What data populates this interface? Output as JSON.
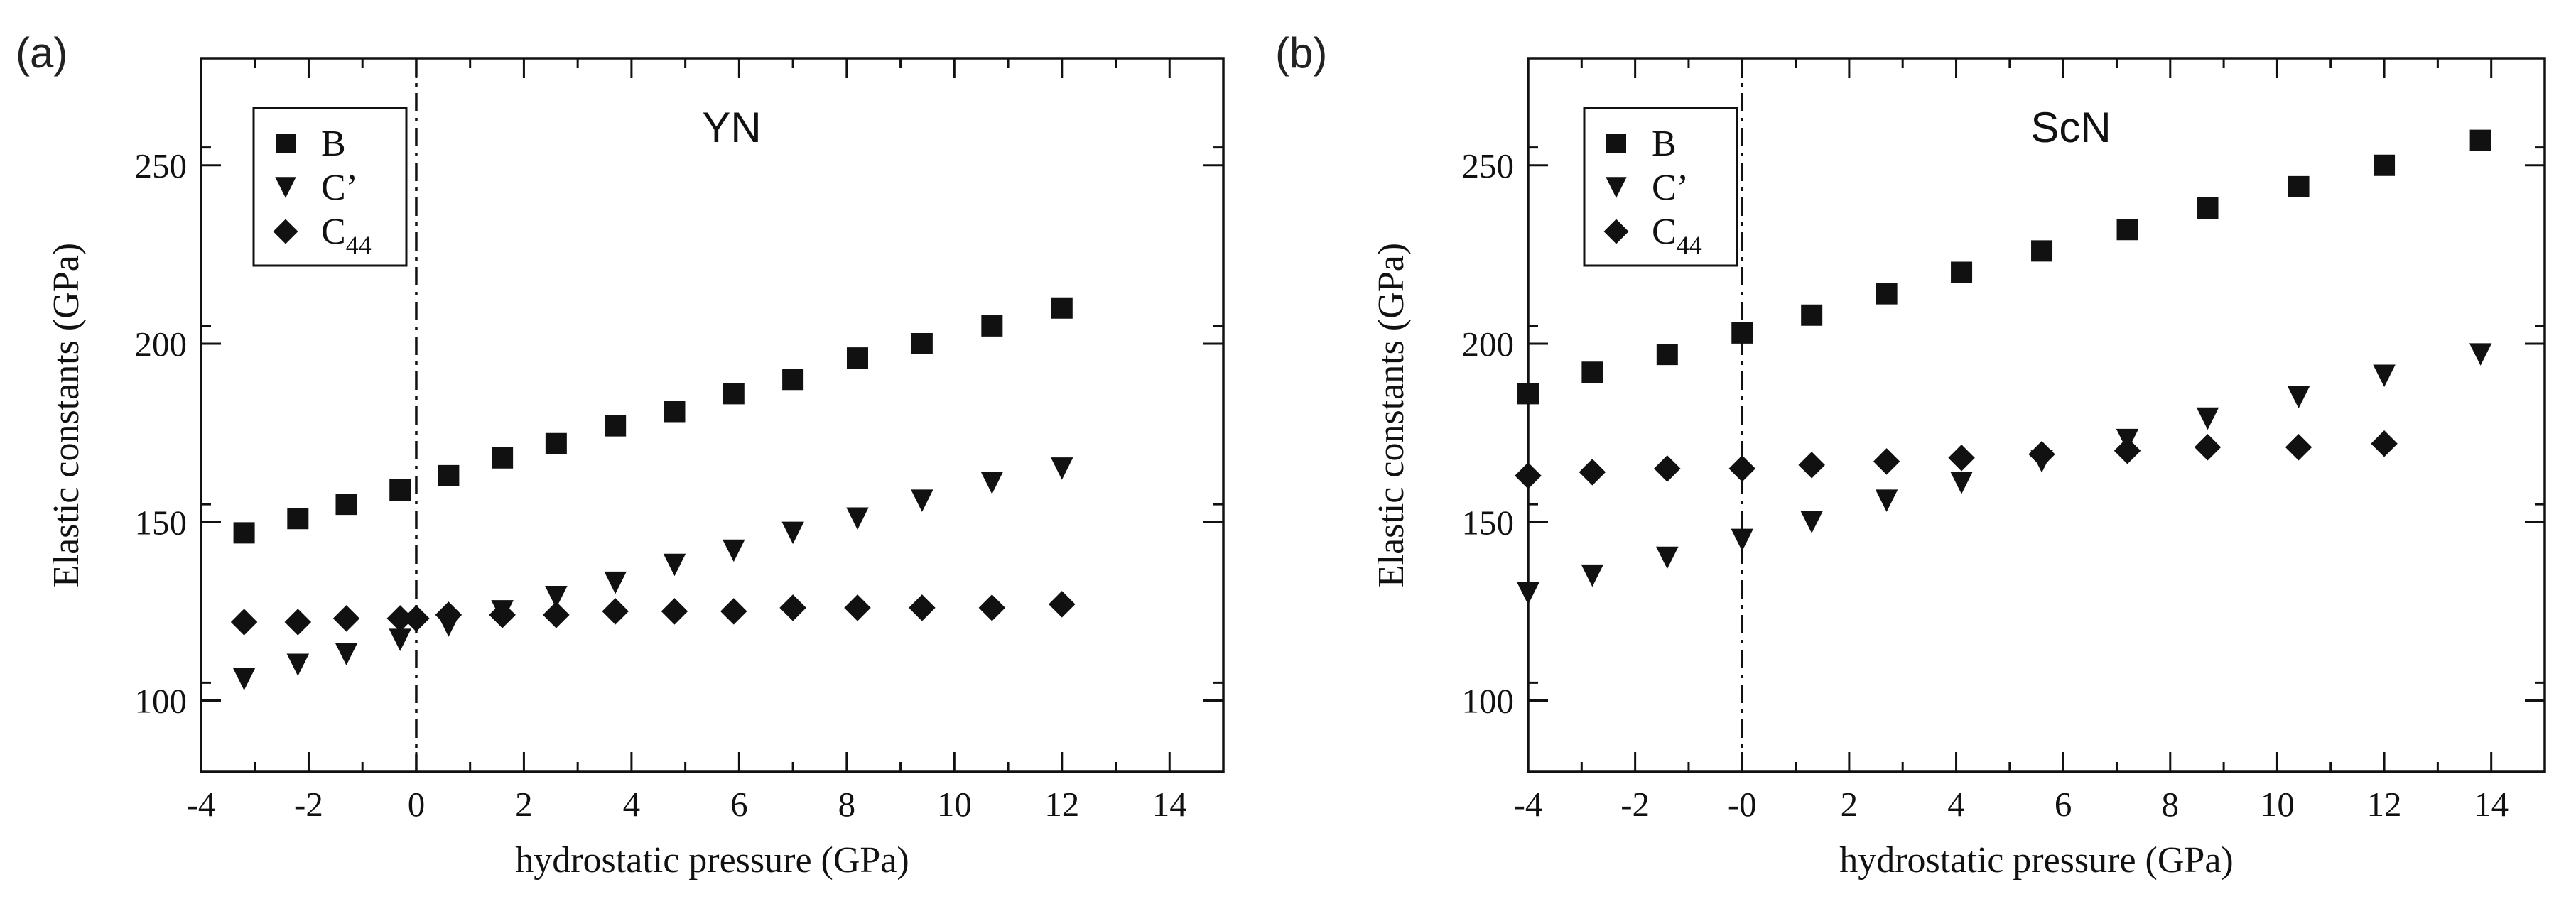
{
  "chart_data": [
    {
      "type": "scatter",
      "panel_label": "(a)",
      "title": "YN",
      "xlabel": "hydrostatic pressure (GPa)",
      "ylabel": "Elastic constants (GPa)",
      "xlim": [
        -4,
        15
      ],
      "ylim": [
        80,
        280
      ],
      "xticks": [
        -4,
        -2,
        0,
        2,
        4,
        6,
        8,
        10,
        12,
        14
      ],
      "yticks": [
        100,
        150,
        200,
        250
      ],
      "xtick_labels": [
        "-4",
        "-2",
        "0",
        "2",
        "4",
        "6",
        "8",
        "10",
        "12",
        "14"
      ],
      "ytick_labels": [
        "100",
        "150",
        "200",
        "250"
      ],
      "vertical_reference_x": 0,
      "legend_position": "top-left",
      "legend": [
        {
          "marker": "square",
          "label": "B",
          "sub": ""
        },
        {
          "marker": "triangle-down",
          "label": "C’",
          "sub": ""
        },
        {
          "marker": "diamond",
          "label": "C",
          "sub": "44"
        }
      ],
      "series": [
        {
          "name": "B",
          "marker": "square",
          "x": [
            -3.2,
            -2.2,
            -1.3,
            -0.3,
            0.6,
            1.6,
            2.6,
            3.7,
            4.8,
            5.9,
            7.0,
            8.2,
            9.4,
            10.7,
            12.0
          ],
          "y": [
            147,
            151,
            155,
            159,
            163,
            168,
            172,
            177,
            181,
            186,
            190,
            196,
            200,
            205,
            210
          ]
        },
        {
          "name": "C’",
          "marker": "triangle-down",
          "x": [
            -3.2,
            -2.2,
            -1.3,
            -0.3,
            0.6,
            1.6,
            2.6,
            3.7,
            4.8,
            5.9,
            7.0,
            8.2,
            9.4,
            10.7,
            12.0
          ],
          "y": [
            106,
            110,
            113,
            117,
            121,
            125,
            129,
            133,
            138,
            142,
            147,
            151,
            156,
            161,
            165
          ]
        },
        {
          "name": "C44",
          "marker": "diamond",
          "x": [
            -3.2,
            -2.2,
            -1.3,
            -0.3,
            0.0,
            0.6,
            1.6,
            2.6,
            3.7,
            4.8,
            5.9,
            7.0,
            8.2,
            9.4,
            10.7,
            12.0
          ],
          "y": [
            122,
            122,
            123,
            123,
            123,
            124,
            124,
            124,
            125,
            125,
            125,
            126,
            126,
            126,
            126,
            127
          ]
        }
      ]
    },
    {
      "type": "scatter",
      "panel_label": "(b)",
      "title": "ScN",
      "xlabel": "hydrostatic pressure (GPa)",
      "ylabel": "Elastic constants (GPa)",
      "xlim": [
        -4,
        15
      ],
      "ylim": [
        80,
        280
      ],
      "xticks": [
        -4,
        -2,
        0,
        2,
        4,
        6,
        8,
        10,
        12,
        14
      ],
      "yticks": [
        100,
        150,
        200,
        250
      ],
      "xtick_labels": [
        "-4",
        "-2",
        "-0",
        "2",
        "4",
        "6",
        "8",
        "10",
        "12",
        "14"
      ],
      "ytick_labels": [
        "100",
        "150",
        "200",
        "250"
      ],
      "vertical_reference_x": 0,
      "legend_position": "top-left",
      "legend": [
        {
          "marker": "square",
          "label": "B",
          "sub": ""
        },
        {
          "marker": "triangle-down",
          "label": "C’",
          "sub": ""
        },
        {
          "marker": "diamond",
          "label": "C",
          "sub": "44"
        }
      ],
      "series": [
        {
          "name": "B",
          "marker": "square",
          "x": [
            -4.0,
            -2.8,
            -1.4,
            0.0,
            1.3,
            2.7,
            4.1,
            5.6,
            7.2,
            8.7,
            10.4,
            12.0,
            13.8
          ],
          "y": [
            186,
            192,
            197,
            203,
            208,
            214,
            220,
            226,
            232,
            238,
            244,
            250,
            257
          ]
        },
        {
          "name": "C’",
          "marker": "triangle-down",
          "x": [
            -4.0,
            -2.8,
            -1.4,
            0.0,
            1.3,
            2.7,
            4.1,
            5.6,
            7.2,
            8.7,
            10.4,
            12.0,
            13.8
          ],
          "y": [
            130,
            135,
            140,
            145,
            150,
            156,
            161,
            167,
            173,
            179,
            185,
            191,
            197
          ]
        },
        {
          "name": "C44",
          "marker": "diamond",
          "x": [
            -4.0,
            -2.8,
            -1.4,
            0.0,
            1.3,
            2.7,
            4.1,
            5.6,
            7.2,
            8.7,
            10.4,
            12.0
          ],
          "y": [
            163,
            164,
            165,
            165,
            166,
            167,
            168,
            169,
            170,
            171,
            171,
            172
          ]
        }
      ]
    }
  ]
}
